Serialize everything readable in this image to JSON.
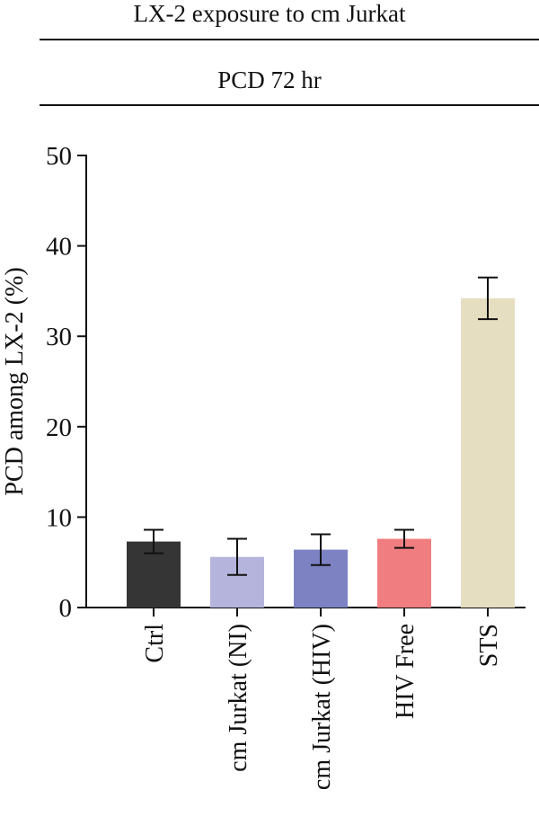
{
  "header": {
    "title": "LX-2 exposure to cm Jurkat",
    "subtitle": "PCD 72 hr"
  },
  "chart_data": {
    "type": "bar",
    "title": "",
    "xlabel": "",
    "ylabel": "PCD among LX-2 (%)",
    "ylim": [
      0,
      50
    ],
    "yticks": [
      0,
      10,
      20,
      30,
      40,
      50
    ],
    "grid": false,
    "categories": [
      "Ctrl",
      "cm Jurkat (NI)",
      "cm Jurkat (HIV)",
      "HIV Free",
      "STS"
    ],
    "values": [
      7.3,
      5.6,
      6.4,
      7.6,
      34.2
    ],
    "error": [
      1.3,
      2.0,
      1.7,
      1.0,
      2.3
    ],
    "colors": [
      "#353535",
      "#b4b4dc",
      "#7c82c2",
      "#f07d80",
      "#e6dec0"
    ]
  }
}
